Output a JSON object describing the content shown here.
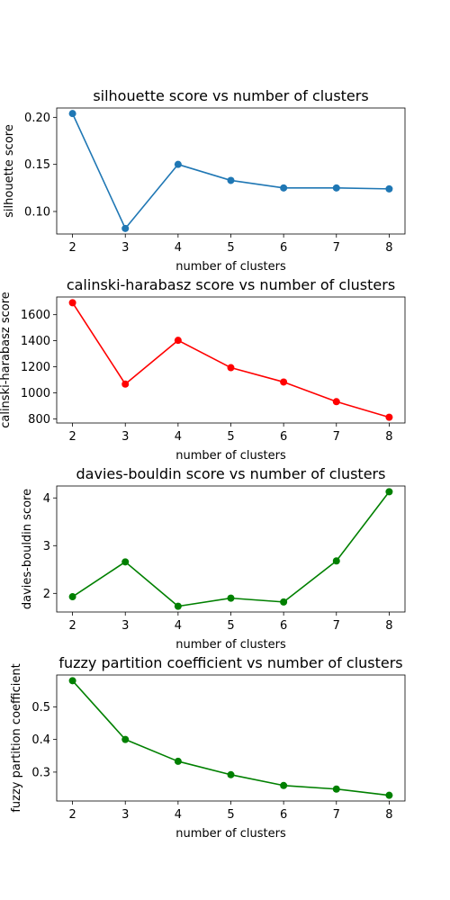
{
  "chart_data": [
    {
      "type": "line",
      "title": "silhouette score vs number of clusters",
      "xlabel": "number of clusters",
      "ylabel": "silhouette score",
      "color": "#1f77b4",
      "x": [
        2,
        3,
        4,
        5,
        6,
        7,
        8
      ],
      "y": [
        0.204,
        0.082,
        0.15,
        0.133,
        0.125,
        0.125,
        0.124
      ],
      "xlim": [
        1.7,
        8.3
      ],
      "ylim": [
        0.0761,
        0.2099
      ],
      "xticks": [
        2,
        3,
        4,
        5,
        6,
        7,
        8
      ],
      "yticks": [
        0.1,
        0.15,
        0.2
      ],
      "yticklabels": [
        "0.10",
        "0.15",
        "0.20"
      ],
      "grid": false,
      "marker": "circle"
    },
    {
      "type": "line",
      "title": "calinski-harabasz score vs number of clusters",
      "xlabel": "number of clusters",
      "ylabel": "calinski-harabasz score",
      "color": "#ff0000",
      "x": [
        2,
        3,
        4,
        5,
        6,
        7,
        8
      ],
      "y": [
        1692,
        1067,
        1403,
        1193,
        1083,
        932,
        812
      ],
      "xlim": [
        1.7,
        8.3
      ],
      "ylim": [
        768,
        1736
      ],
      "xticks": [
        2,
        3,
        4,
        5,
        6,
        7,
        8
      ],
      "yticks": [
        800,
        1000,
        1200,
        1400,
        1600
      ],
      "yticklabels": [
        "800",
        "1000",
        "1200",
        "1400",
        "1600"
      ],
      "grid": false,
      "marker": "circle"
    },
    {
      "type": "line",
      "title": "davies-bouldin score vs number of clusters",
      "xlabel": "number of clusters",
      "ylabel": "davies-bouldin score",
      "color": "#008000",
      "x": [
        2,
        3,
        4,
        5,
        6,
        7,
        8
      ],
      "y": [
        1.93,
        2.66,
        1.73,
        1.9,
        1.82,
        2.68,
        4.13
      ],
      "xlim": [
        1.7,
        8.3
      ],
      "ylim": [
        1.61,
        4.25
      ],
      "xticks": [
        2,
        3,
        4,
        5,
        6,
        7,
        8
      ],
      "yticks": [
        2,
        3,
        4
      ],
      "yticklabels": [
        "2",
        "3",
        "4"
      ],
      "grid": false,
      "marker": "circle"
    },
    {
      "type": "line",
      "title": "fuzzy partition coefficient vs number of clusters",
      "xlabel": "number of clusters",
      "ylabel": "fuzzy partition coefficient",
      "color": "#008000",
      "x": [
        2,
        3,
        4,
        5,
        6,
        7,
        8
      ],
      "y": [
        0.58,
        0.4,
        0.333,
        0.292,
        0.259,
        0.248,
        0.229
      ],
      "xlim": [
        1.7,
        8.3
      ],
      "ylim": [
        0.2115,
        0.5975
      ],
      "xticks": [
        2,
        3,
        4,
        5,
        6,
        7,
        8
      ],
      "yticks": [
        0.3,
        0.4,
        0.5
      ],
      "yticklabels": [
        "0.3",
        "0.4",
        "0.5"
      ],
      "grid": false,
      "marker": "circle"
    }
  ]
}
